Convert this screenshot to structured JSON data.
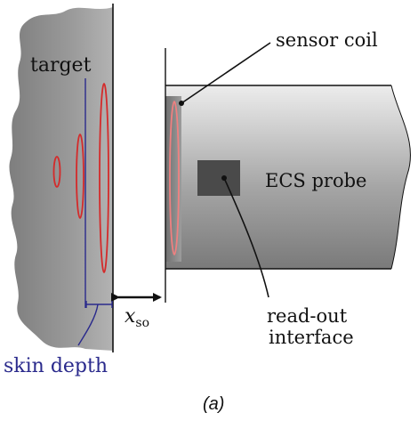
{
  "labels": {
    "target": "target",
    "sensor_coil": "sensor coil",
    "probe": "ECS probe",
    "readout_line1": "read-out",
    "readout_line2": "interface",
    "distance_var": "x",
    "distance_sub": "so",
    "skin_depth": "skin depth",
    "caption": "(a)"
  },
  "colors": {
    "target_fill": "#8c8c8c",
    "probe_body": "#a9a9a9",
    "eddy_current": "#d42a2a",
    "skin_depth_line": "#2a2a8c",
    "readout_box": "#4a4a4a",
    "ink": "#111111"
  }
}
